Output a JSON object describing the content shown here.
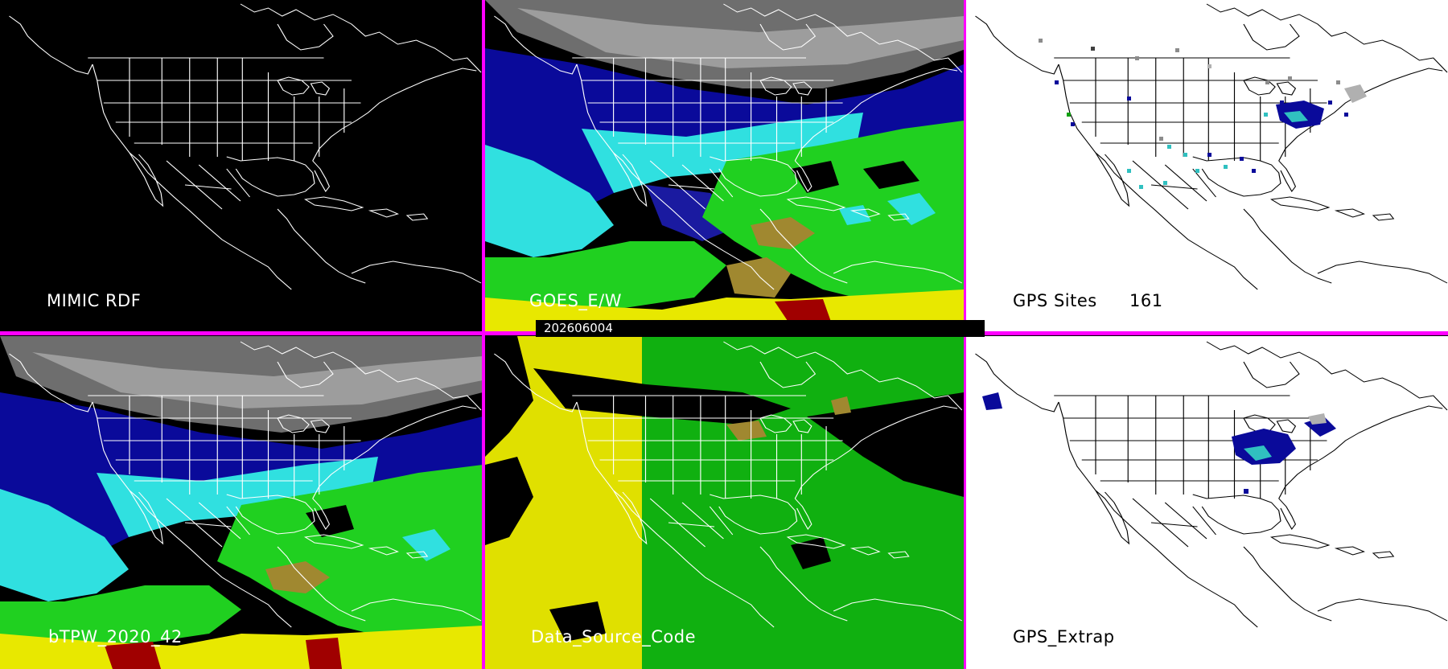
{
  "panels": {
    "mimic_rdf": {
      "label": "MIMIC RDF"
    },
    "goes_ew": {
      "label": "GOES_E/W"
    },
    "gps_sites": {
      "label": "GPS Sites",
      "count": "161"
    },
    "btpw": {
      "label": "bTPW_2020_42"
    },
    "data_source": {
      "label": "Data_Source_Code"
    },
    "gps_extrap": {
      "label": "GPS_Extrap"
    }
  },
  "timestamp": "202606004",
  "colors": {
    "divider": "#ff00ff",
    "map_outline_dark": "#ffffff",
    "map_outline_light": "#000000",
    "tpw_dry_gray": "#8c8c8c",
    "tpw_navy": "#0a0a9a",
    "tpw_cyan": "#30e0e0",
    "tpw_green": "#20d020",
    "tpw_brown": "#a08830",
    "tpw_yellow": "#e8e800",
    "tpw_red": "#a00000",
    "source_yellow": "#e0e000",
    "source_green": "#10b010"
  }
}
